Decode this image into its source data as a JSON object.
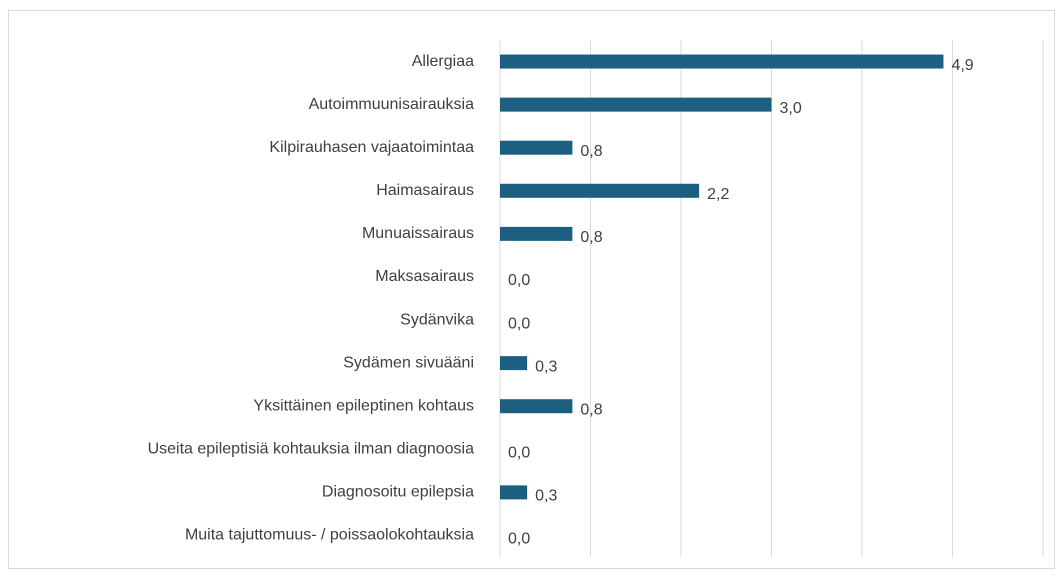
{
  "chart_data": {
    "type": "bar",
    "orientation": "horizontal",
    "categories": [
      "Allergiaa",
      "Autoimmuunisairauksia",
      "Kilpirauhasen vajaatoimintaa",
      "Haimasairaus",
      "Munuaissairaus",
      "Maksasairaus",
      "Sydänvika",
      "Sydämen sivuääni",
      "Yksittäinen epileptinen kohtaus",
      "Useita epileptisiä kohtauksia ilman diagnoosia",
      "Diagnosoitu epilepsia",
      "Muita tajuttomuus- / poissaolokohtauksia"
    ],
    "values": [
      4.9,
      3.0,
      0.8,
      2.2,
      0.8,
      0.0,
      0.0,
      0.3,
      0.8,
      0.0,
      0.3,
      0.0
    ],
    "value_labels": [
      "4,9",
      "3,0",
      "0,8",
      "2,2",
      "0,8",
      "0,0",
      "0,0",
      "0,3",
      "0,8",
      "0,0",
      "0,3",
      "0,0"
    ],
    "color": "#1d5f80",
    "xlim": [
      0,
      6
    ],
    "xticks": [
      0,
      1,
      2,
      3,
      4,
      5,
      6
    ],
    "grid": true
  }
}
